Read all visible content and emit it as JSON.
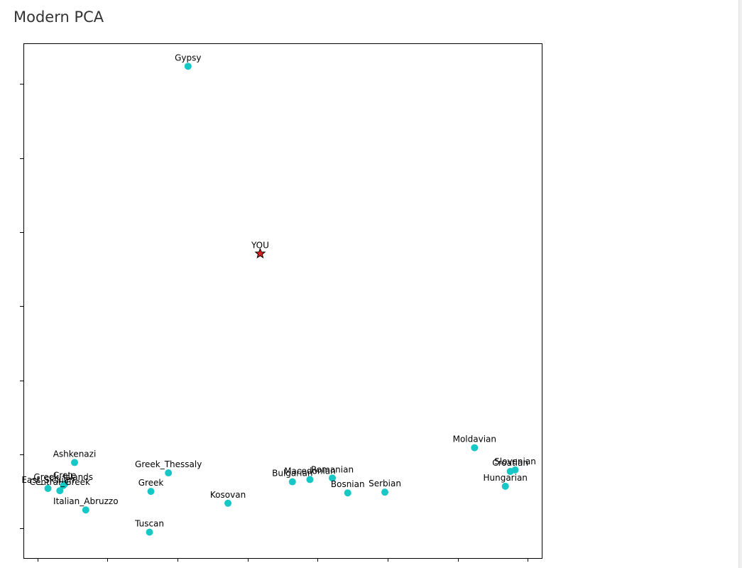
{
  "page": {
    "title": "Modern PCA"
  },
  "chart_data": {
    "type": "scatter",
    "title": "",
    "xlabel": "",
    "ylabel": "",
    "xlim": [
      -0.2,
      7.2
    ],
    "ylim": [
      -0.4,
      6.55
    ],
    "x_ticks": [
      0,
      1,
      2,
      3,
      4,
      5,
      6,
      7
    ],
    "y_ticks": [
      0,
      1,
      2,
      3,
      4,
      5,
      6
    ],
    "tick_labels_visible": false,
    "grid": false,
    "legend": "none",
    "colors": {
      "reference": "#17c7c5",
      "you": "#e02020",
      "you_edge": "#000000"
    },
    "points": [
      {
        "label": "Gypsy",
        "x": 2.15,
        "y": 6.24
      },
      {
        "label": "YOU",
        "x": 3.18,
        "y": 3.71,
        "kind": "you"
      },
      {
        "label": "Moldavian",
        "x": 6.24,
        "y": 1.09
      },
      {
        "label": "Slovenian",
        "x": 6.82,
        "y": 0.79
      },
      {
        "label": "Croatian",
        "x": 6.75,
        "y": 0.77
      },
      {
        "label": "Hungarian",
        "x": 6.68,
        "y": 0.57
      },
      {
        "label": "Ashkenazi",
        "x": 0.53,
        "y": 0.89
      },
      {
        "label": "Greek_Thessaly",
        "x": 1.87,
        "y": 0.75
      },
      {
        "label": "Greek_Islands",
        "x": 0.37,
        "y": 0.58
      },
      {
        "label": "Crete",
        "x": 0.39,
        "y": 0.6
      },
      {
        "label": "East_Sicilian",
        "x": 0.15,
        "y": 0.54
      },
      {
        "label": "Central_Greek",
        "x": 0.32,
        "y": 0.51
      },
      {
        "label": "Greek",
        "x": 1.62,
        "y": 0.5
      },
      {
        "label": "Italian_Abruzzo",
        "x": 0.69,
        "y": 0.25
      },
      {
        "label": "Tuscan",
        "x": 1.6,
        "y": -0.05
      },
      {
        "label": "Kosovan",
        "x": 2.72,
        "y": 0.34
      },
      {
        "label": "Bulgarian",
        "x": 3.64,
        "y": 0.63
      },
      {
        "label": "Macedonian",
        "x": 3.89,
        "y": 0.66
      },
      {
        "label": "Romanian",
        "x": 4.21,
        "y": 0.68
      },
      {
        "label": "Bosnian",
        "x": 4.43,
        "y": 0.48
      },
      {
        "label": "Serbian",
        "x": 4.96,
        "y": 0.49
      }
    ]
  }
}
